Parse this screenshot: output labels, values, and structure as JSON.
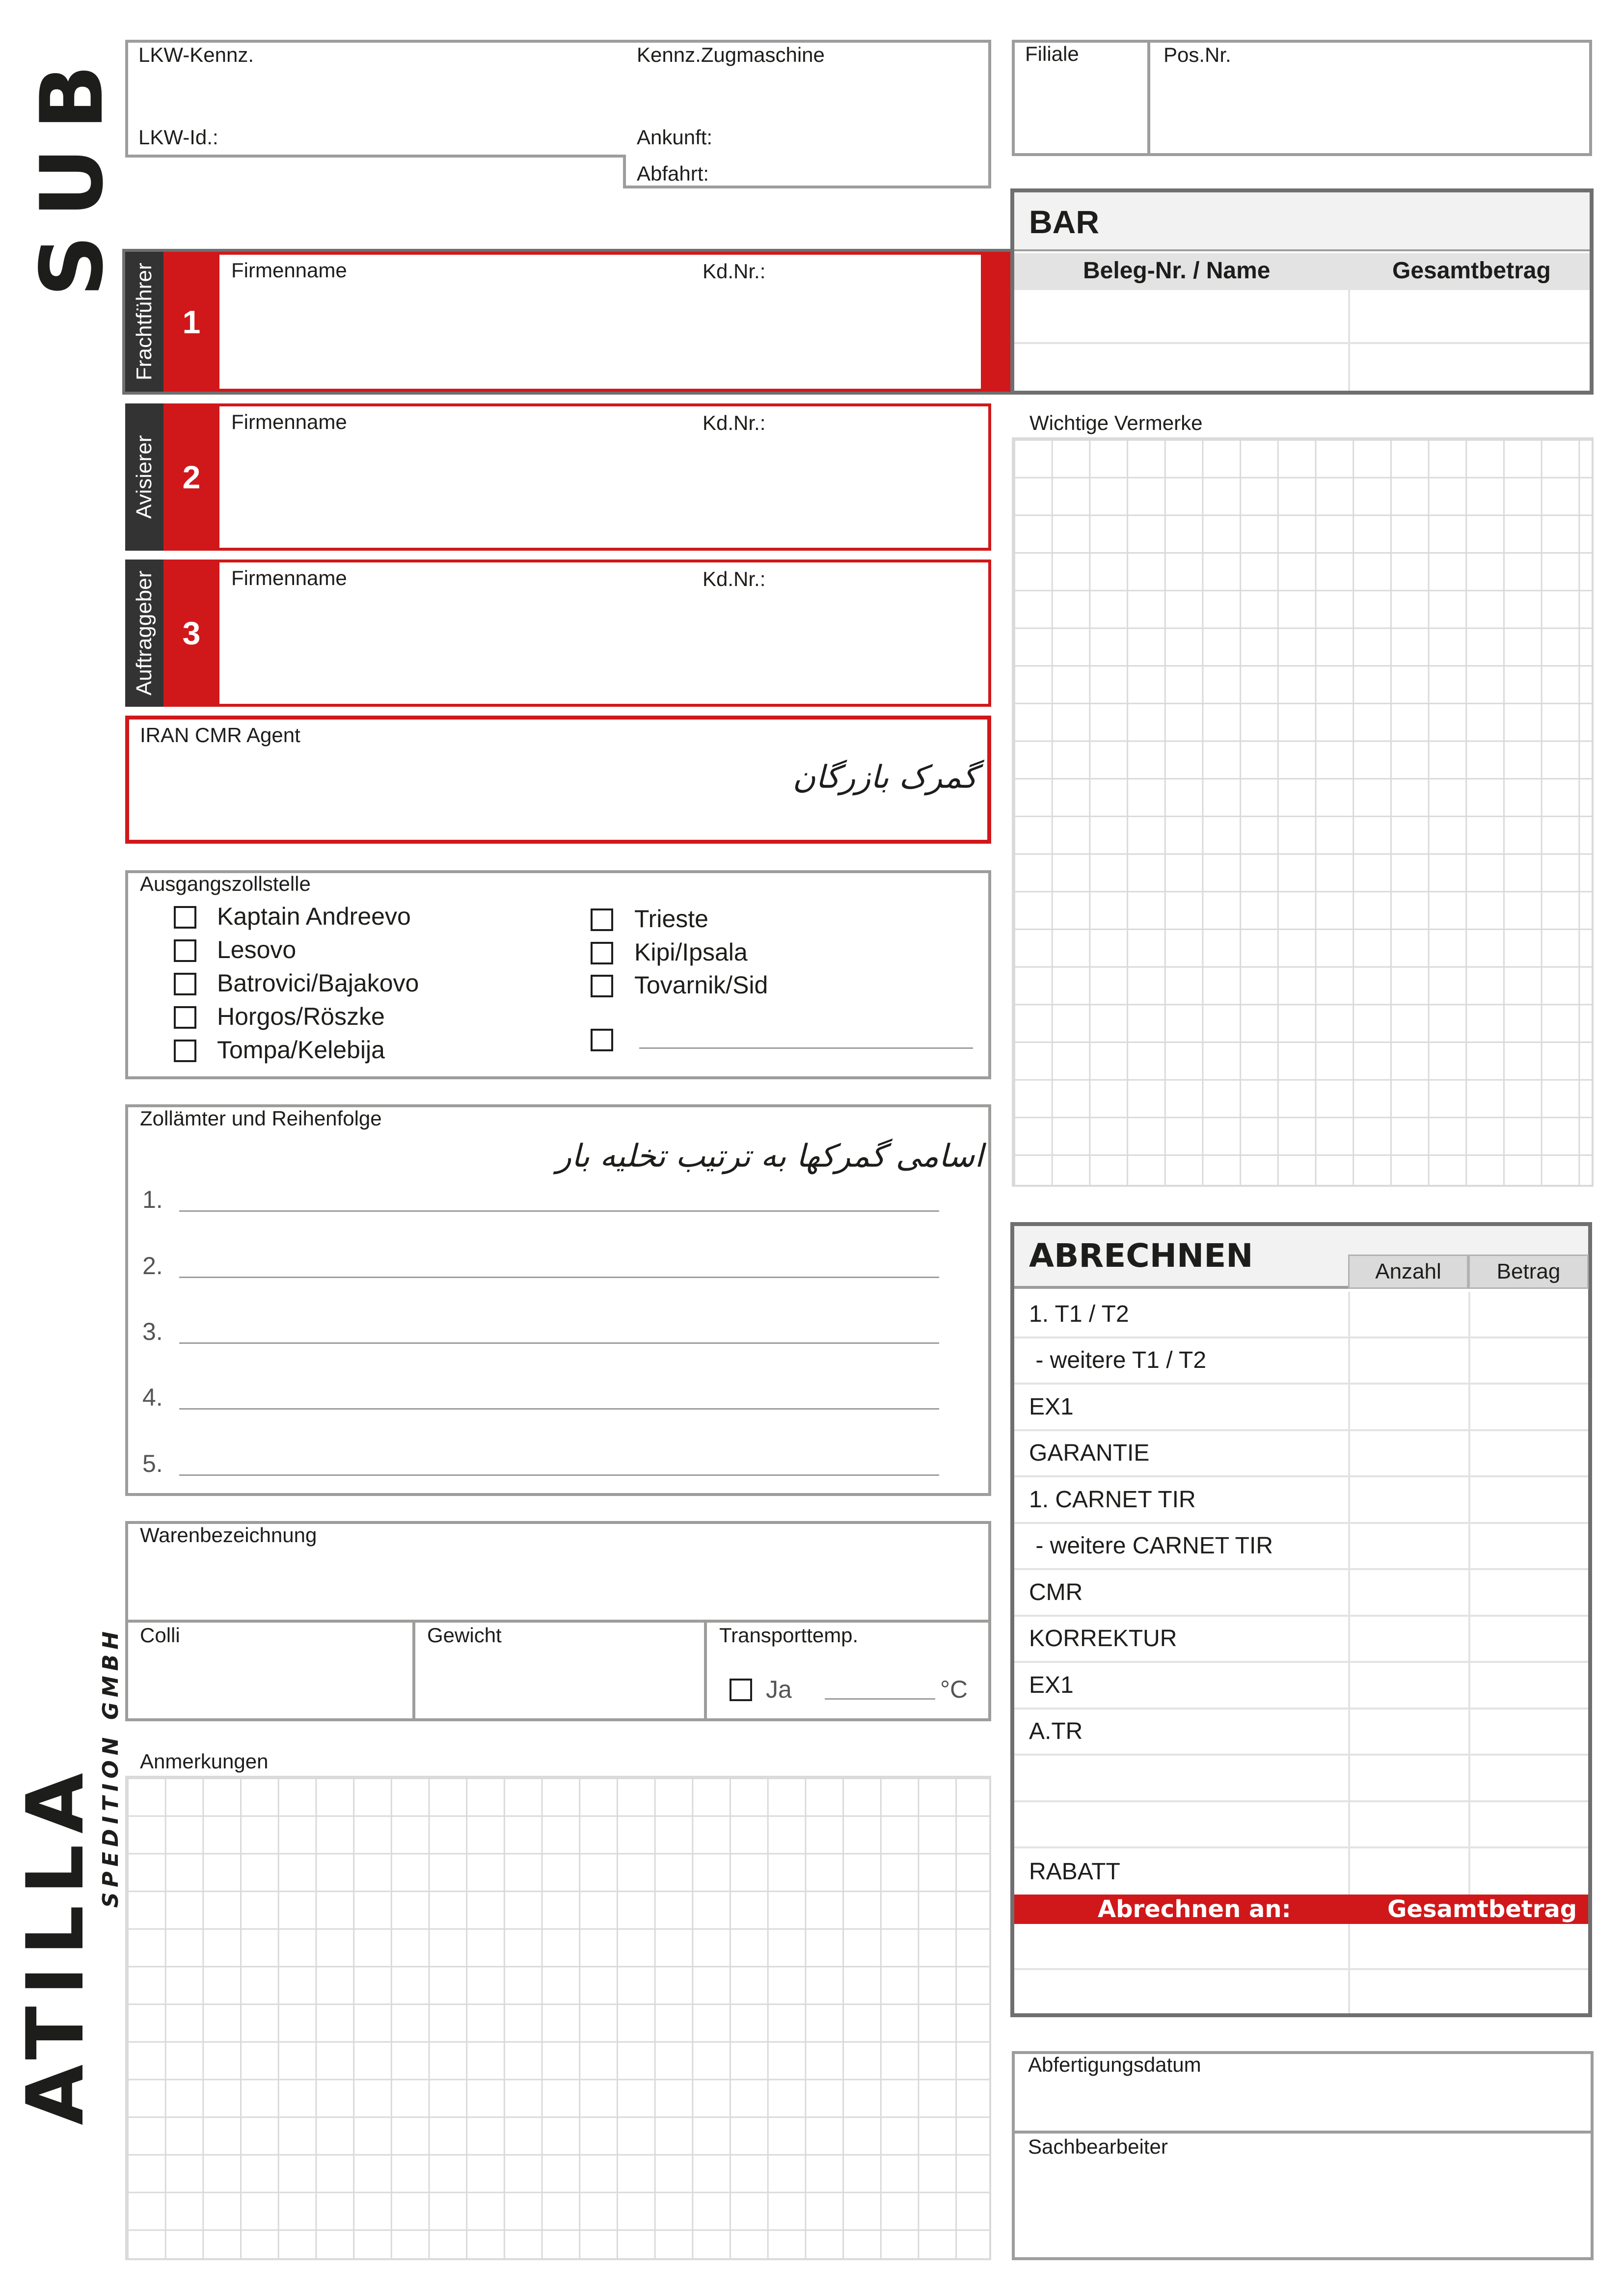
{
  "logos": {
    "top": "SUB",
    "bottom_main": "ATILLA",
    "bottom_sub": "SPEDITION GMBH"
  },
  "truck": {
    "lkw_kennz": "LKW-Kennz.",
    "kennz_zugmaschine": "Kennz.Zugmaschine",
    "lkw_id": "LKW-Id.:",
    "ankunft": "Ankunft:",
    "abfahrt": "Abfahrt:"
  },
  "branch": {
    "filiale": "Filiale",
    "pos_nr": "Pos.Nr."
  },
  "bar": {
    "title": "BAR",
    "col1": "Beleg-Nr. / Name",
    "col2": "Gesamtbetrag"
  },
  "parties": [
    {
      "role": "Frachtführer",
      "number": "1",
      "company": "Firmenname",
      "customer_no": "Kd.Nr.:"
    },
    {
      "role": "Avisierer",
      "number": "2",
      "company": "Firmenname",
      "customer_no": "Kd.Nr.:"
    },
    {
      "role": "Auftraggeber",
      "number": "3",
      "company": "Firmenname",
      "customer_no": "Kd.Nr.:"
    }
  ],
  "agent": {
    "label": "IRAN CMR Agent",
    "handwritten": "گمرک بازرگان"
  },
  "exit_customs": {
    "title": "Ausgangszollstelle",
    "left": [
      "Kaptain Andreevo",
      "Lesovo",
      "Batrovici/Bajakovo",
      "Horgos/Röszke",
      "Tompa/Kelebija"
    ],
    "right": [
      "Trieste",
      "Kipi/Ipsala",
      "Tovarnik/Sid"
    ]
  },
  "customs_offices": {
    "title": "Zollämter und Reihenfolge",
    "handwritten": "اسامی گمرکها به ترتیب تخلیه بار",
    "items": [
      "1.",
      "2.",
      "3.",
      "4.",
      "5."
    ]
  },
  "goods": {
    "title": "Warenbezeichnung",
    "colli": "Colli",
    "gewicht": "Gewicht",
    "transporttemp": "Transporttemp.",
    "ja": "Ja",
    "unit": "°C"
  },
  "remarks": {
    "anmerkungen": "Anmerkungen",
    "wichtige_vermerke": "Wichtige Vermerke"
  },
  "billing": {
    "title": "ABRECHNEN",
    "col_anzahl": "Anzahl",
    "col_betrag": "Betrag",
    "rows": [
      "1. T1 / T2",
      " - weitere T1 / T2",
      "EX1",
      "GARANTIE",
      "1. CARNET TIR",
      " - weitere CARNET TIR",
      "CMR",
      "KORREKTUR",
      "EX1",
      "A.TR",
      "",
      "",
      "RABATT"
    ],
    "footer_left": "Abrechnen an:",
    "footer_right": "Gesamtbetrag"
  },
  "processing": {
    "date": "Abfertigungsdatum",
    "clerk": "Sachbearbeiter"
  },
  "colors": {
    "red": "#d0181b",
    "dark": "#333333",
    "border": "#9d9d9c"
  }
}
